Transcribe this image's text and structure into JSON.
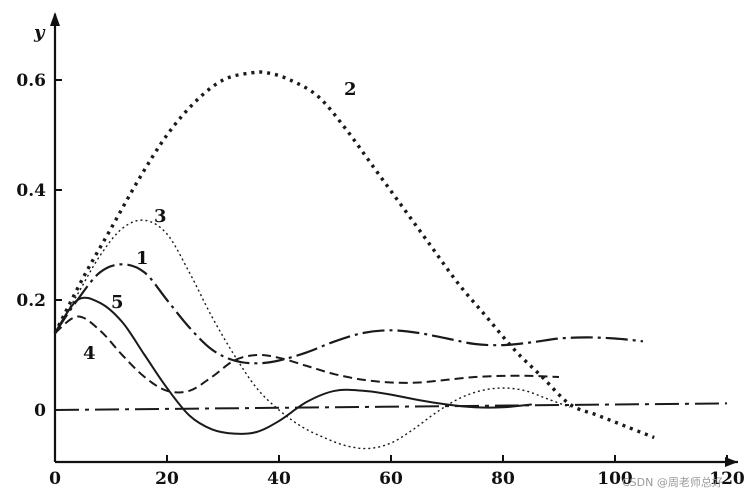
{
  "chart_data": {
    "type": "line",
    "xlabel": "",
    "ylabel": "y",
    "xlim": [
      0,
      125
    ],
    "ylim": [
      -0.08,
      0.72
    ],
    "x_ticks": [
      "0",
      "20",
      "40",
      "60",
      "80",
      "100",
      "120"
    ],
    "y_ticks": [
      "0",
      "0.2",
      "0.4",
      "0.6"
    ],
    "grid": false,
    "legend": "none",
    "series": [
      {
        "name": "1",
        "dash": "long-dash-dot",
        "x": [
          0,
          4,
          8,
          12,
          16,
          20,
          24,
          28,
          32,
          36,
          40,
          45,
          50,
          55,
          60,
          65,
          70,
          75,
          80,
          85,
          90,
          95,
          100,
          105
        ],
        "y": [
          0.14,
          0.2,
          0.25,
          0.265,
          0.25,
          0.2,
          0.15,
          0.11,
          0.09,
          0.085,
          0.09,
          0.105,
          0.125,
          0.14,
          0.145,
          0.14,
          0.13,
          0.12,
          0.118,
          0.123,
          0.13,
          0.132,
          0.13,
          0.125
        ]
      },
      {
        "name": "2",
        "dash": "dotted-bold",
        "x": [
          0,
          5,
          10,
          15,
          20,
          25,
          30,
          35,
          38,
          42,
          47,
          52,
          57,
          62,
          67,
          72,
          77,
          82,
          87,
          92,
          97,
          102,
          107
        ],
        "y": [
          0.14,
          0.24,
          0.33,
          0.42,
          0.5,
          0.56,
          0.6,
          0.613,
          0.613,
          0.6,
          0.57,
          0.51,
          0.44,
          0.37,
          0.3,
          0.23,
          0.17,
          0.11,
          0.06,
          0.01,
          -0.01,
          -0.03,
          -0.05
        ]
      },
      {
        "name": "3",
        "dash": "dotted-fine",
        "x": [
          0,
          4,
          8,
          12,
          16,
          20,
          24,
          28,
          32,
          36,
          40,
          44,
          48,
          52,
          56,
          60,
          64,
          68,
          72,
          76,
          80,
          84,
          88,
          92
        ],
        "y": [
          0.14,
          0.21,
          0.28,
          0.33,
          0.345,
          0.32,
          0.25,
          0.17,
          0.1,
          0.04,
          0.0,
          -0.03,
          -0.05,
          -0.065,
          -0.07,
          -0.06,
          -0.035,
          -0.005,
          0.02,
          0.035,
          0.04,
          0.035,
          0.02,
          0.005
        ]
      },
      {
        "name": "4",
        "dash": "dashed",
        "x": [
          0,
          4,
          8,
          12,
          16,
          20,
          24,
          28,
          32,
          36,
          40,
          45,
          50,
          55,
          60,
          65,
          70,
          75,
          80,
          85,
          90
        ],
        "y": [
          0.14,
          0.17,
          0.145,
          0.1,
          0.06,
          0.035,
          0.035,
          0.06,
          0.09,
          0.1,
          0.095,
          0.08,
          0.065,
          0.055,
          0.05,
          0.05,
          0.055,
          0.06,
          0.062,
          0.062,
          0.06
        ]
      },
      {
        "name": "5",
        "dash": "solid",
        "x": [
          0,
          4,
          8,
          12,
          16,
          20,
          24,
          28,
          32,
          36,
          40,
          45,
          50,
          55,
          60,
          65,
          70,
          75,
          80,
          85
        ],
        "y": [
          0.14,
          0.2,
          0.195,
          0.16,
          0.1,
          0.04,
          -0.01,
          -0.035,
          -0.043,
          -0.04,
          -0.02,
          0.015,
          0.035,
          0.035,
          0.028,
          0.018,
          0.01,
          0.005,
          0.005,
          0.01
        ]
      },
      {
        "name": "",
        "dash": "dash-dot-baseline",
        "x": [
          0,
          120
        ],
        "y": [
          0.0,
          0.012
        ]
      }
    ]
  },
  "watermark": "CSDN @周老师总好"
}
